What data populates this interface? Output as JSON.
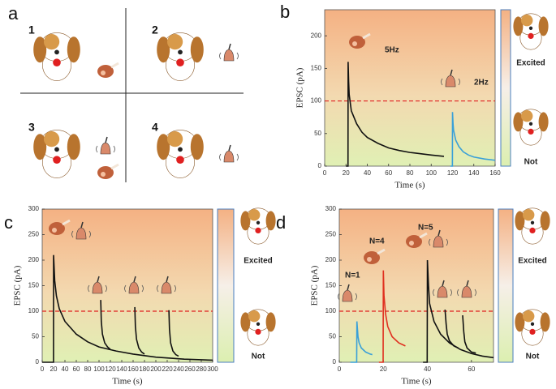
{
  "panel_a": {
    "label": "a",
    "scene_labels": [
      "1",
      "2",
      "3",
      "4"
    ]
  },
  "chart_data": [
    {
      "type": "line",
      "panel_label": "b",
      "xlabel": "Time (s)",
      "ylabel": "EPSC (pA)",
      "xlim": [
        0,
        160
      ],
      "xticks": [
        0,
        20,
        40,
        60,
        80,
        100,
        120,
        140,
        160
      ],
      "ylim": [
        0,
        240
      ],
      "yticks": [
        0,
        50,
        100,
        150,
        200
      ],
      "threshold": 100,
      "annotations": [
        "5Hz",
        "2Hz"
      ],
      "state_labels": [
        "Excited",
        "Not"
      ],
      "series": [
        {
          "color": "#111111",
          "x": [
            20,
            21.9,
            22,
            22.5,
            23,
            25,
            30,
            35,
            40,
            50,
            60,
            70,
            80,
            90,
            100,
            112
          ],
          "values": [
            0,
            0,
            160,
            130,
            110,
            85,
            65,
            52,
            44,
            35,
            28,
            24,
            21,
            19,
            17,
            15
          ]
        },
        {
          "color": "#3aa0d8",
          "x": [
            118,
            119.9,
            120,
            120.5,
            121,
            123,
            126,
            130,
            135,
            140,
            150,
            160
          ],
          "values": [
            0,
            0,
            83,
            65,
            55,
            40,
            30,
            22,
            17,
            14,
            11,
            9
          ]
        }
      ]
    },
    {
      "type": "line",
      "panel_label": "c",
      "xlabel": "Time (s)",
      "ylabel": "EPSC (pA)",
      "xlim": [
        0,
        300
      ],
      "xticks": [
        0,
        20,
        40,
        60,
        80,
        100,
        120,
        140,
        160,
        180,
        200,
        220,
        240,
        260,
        280,
        300
      ],
      "ylim": [
        0,
        300
      ],
      "yticks": [
        0,
        50,
        100,
        150,
        200,
        250,
        300
      ],
      "threshold": 100,
      "annotations": [],
      "state_labels": [
        "Excited",
        "Not"
      ],
      "series": [
        {
          "color": "#111111",
          "x": [
            0,
            19.9,
            20,
            22,
            25,
            30,
            40,
            60,
            80,
            100,
            130,
            160,
            200,
            250,
            300
          ],
          "values": [
            0,
            0,
            210,
            160,
            130,
            105,
            80,
            55,
            40,
            30,
            22,
            16,
            10,
            6,
            4
          ]
        },
        {
          "color": "#111111",
          "x": [
            103,
            104,
            106,
            110,
            115,
            120
          ],
          "values": [
            122,
            80,
            55,
            38,
            30,
            25
          ]
        },
        {
          "color": "#111111",
          "x": [
            163,
            164,
            166,
            170,
            175,
            180
          ],
          "values": [
            108,
            70,
            45,
            28,
            20,
            16
          ]
        },
        {
          "color": "#111111",
          "x": [
            223,
            224,
            226,
            230,
            235,
            240
          ],
          "values": [
            102,
            65,
            38,
            22,
            15,
            12
          ]
        }
      ]
    },
    {
      "type": "line",
      "panel_label": "d",
      "xlabel": "Time (s)",
      "ylabel": "EPSC (pA)",
      "xlim": [
        0,
        70
      ],
      "xticks": [
        0,
        20,
        40,
        60
      ],
      "ylim": [
        0,
        300
      ],
      "yticks": [
        0,
        50,
        100,
        150,
        200,
        250,
        300
      ],
      "threshold": 100,
      "annotations": [
        "N=1",
        "N=4",
        "N=5"
      ],
      "state_labels": [
        "Excited",
        "Not"
      ],
      "series": [
        {
          "color": "#3aa0d8",
          "x": [
            5,
            7.9,
            8,
            8.5,
            9,
            10,
            12,
            14,
            15
          ],
          "values": [
            0,
            0,
            80,
            50,
            38,
            28,
            20,
            16,
            15
          ]
        },
        {
          "color": "#e03020",
          "x": [
            18,
            19.9,
            20,
            20.3,
            21,
            22,
            24,
            27,
            30
          ],
          "values": [
            0,
            0,
            180,
            130,
            95,
            70,
            50,
            38,
            32
          ]
        },
        {
          "color": "#111111",
          "x": [
            38,
            39.9,
            40,
            40.5,
            41,
            43,
            46,
            50,
            55,
            60,
            65,
            70
          ],
          "values": [
            0,
            0,
            200,
            150,
            115,
            80,
            55,
            38,
            25,
            17,
            12,
            9
          ]
        },
        {
          "color": "#111111",
          "x": [
            48,
            48.5,
            49,
            50,
            52,
            54
          ],
          "values": [
            103,
            75,
            55,
            42,
            32,
            28
          ]
        },
        {
          "color": "#111111",
          "x": [
            56,
            56.5,
            57,
            58,
            60,
            62
          ],
          "values": [
            92,
            60,
            40,
            28,
            20,
            18
          ]
        }
      ]
    }
  ]
}
